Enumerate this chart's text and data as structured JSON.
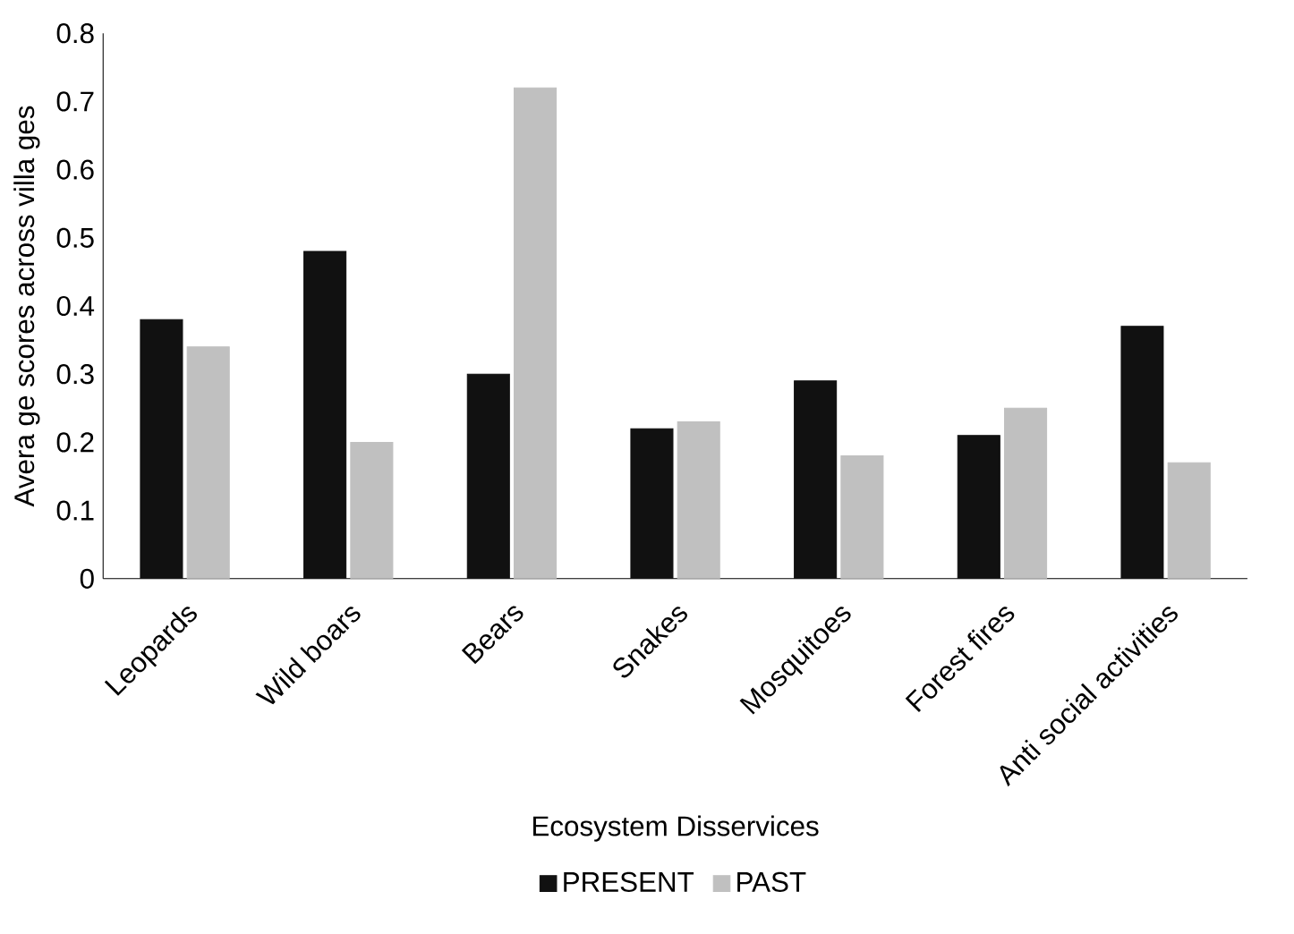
{
  "chart_data": {
    "type": "bar",
    "xlabel": "Ecosystem Disservices",
    "ylabel": "Avera ge scores across villa ges",
    "categories": [
      "Leopards",
      "Wild boars",
      "Bears",
      "Snakes",
      "Mosquitoes",
      "Forest fires",
      "Anti social activities"
    ],
    "series": [
      {
        "name": "PRESENT",
        "color": "#111111",
        "values": [
          0.38,
          0.48,
          0.3,
          0.22,
          0.29,
          0.21,
          0.37
        ]
      },
      {
        "name": "PAST",
        "color": "#c0c0c0",
        "values": [
          0.34,
          0.2,
          0.72,
          0.23,
          0.18,
          0.25,
          0.17
        ]
      }
    ],
    "ylim": [
      0,
      0.8
    ],
    "yticks": [
      0,
      0.1,
      0.2,
      0.3,
      0.4,
      0.5,
      0.6,
      0.7,
      0.8
    ],
    "grid": false,
    "legend": "bottom"
  }
}
